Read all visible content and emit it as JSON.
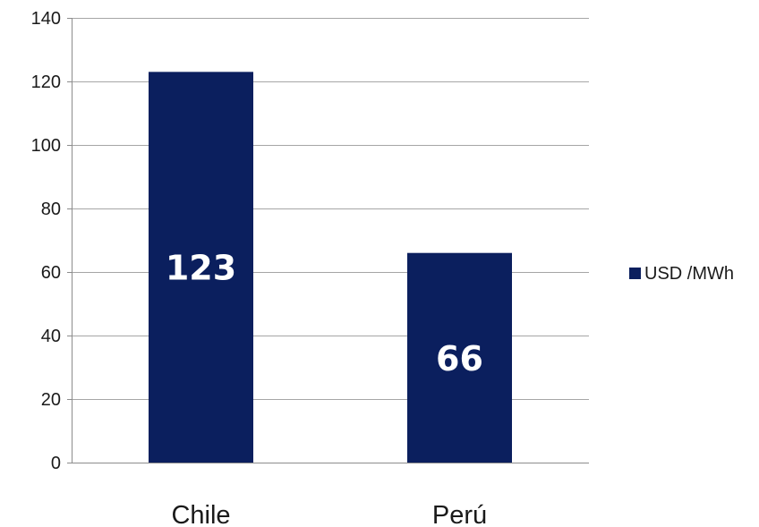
{
  "chart_data": {
    "type": "bar",
    "categories": [
      "Chile",
      "Perú"
    ],
    "series": [
      {
        "name": "USD /MWh",
        "values": [
          123,
          66
        ],
        "color": "#0b1f5e"
      }
    ],
    "data_labels": [
      "123",
      "66"
    ],
    "title": "",
    "xlabel": "",
    "ylabel": "",
    "ylim": [
      0,
      140
    ],
    "yticks": [
      0,
      20,
      40,
      60,
      80,
      100,
      120,
      140
    ],
    "grid": true,
    "legend": "right"
  },
  "colors": {
    "bar": "#0b1f5e",
    "grid": "#a6a6a6",
    "axis": "#8c8c8c"
  }
}
